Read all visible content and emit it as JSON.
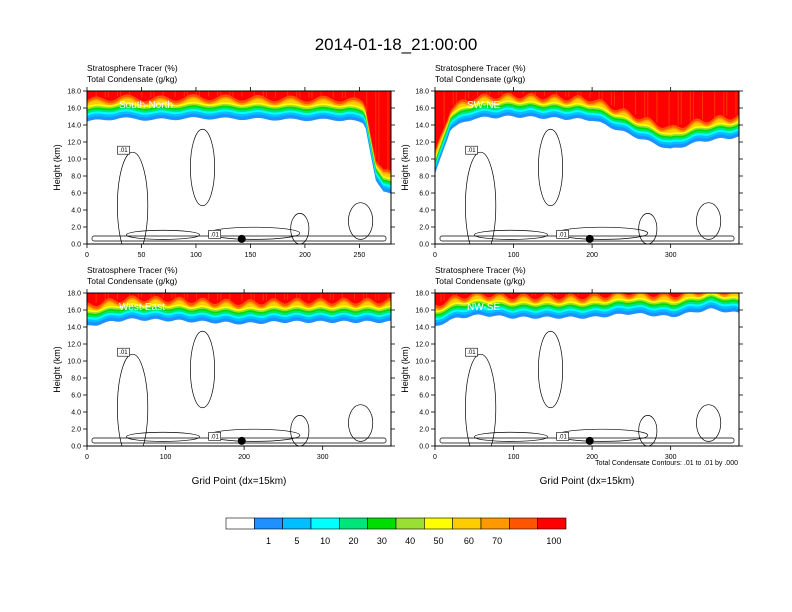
{
  "page": {
    "title": "2014-01-18_21:00:00",
    "note": "Total Condensate Contours: .01 to .01 by .000",
    "xaxis_title": "Grid Point (dx=15km)"
  },
  "colors": {
    "levels": [
      {
        "label": "",
        "hex": "#ffffff"
      },
      {
        "label": "1",
        "hex": "#1e90ff"
      },
      {
        "label": "5",
        "hex": "#00bfff"
      },
      {
        "label": "10",
        "hex": "#00ffff"
      },
      {
        "label": "20",
        "hex": "#00e57a"
      },
      {
        "label": "30",
        "hex": "#00dd00"
      },
      {
        "label": "40",
        "hex": "#99e033"
      },
      {
        "label": "50",
        "hex": "#ffff00"
      },
      {
        "label": "60",
        "hex": "#ffcc00"
      },
      {
        "label": "70",
        "hex": "#ff9900"
      },
      {
        "label": "",
        "hex": "#ff5500"
      },
      {
        "label": "100",
        "hex": "#ff0000"
      }
    ]
  },
  "chart_data": [
    {
      "type": "heatmap",
      "section": "South-North",
      "subtitle_1": "Stratosphere Tracer   (%)",
      "subtitle_2": "Total Condensate   (g/kg)",
      "ylabel": "Height (km)",
      "xlabel": "",
      "xlim": [
        0,
        279
      ],
      "ylim": [
        0,
        18
      ],
      "xticks": [
        0,
        50,
        100,
        150,
        200,
        250
      ],
      "yticks": [
        0,
        2,
        4,
        6,
        8,
        10,
        12,
        14,
        16,
        18
      ],
      "ytick_labels": [
        "0.0",
        "2.0",
        "4.0",
        "6.0",
        "8.0",
        "10.0",
        "12.0",
        "14.0",
        "16.0",
        "18.0"
      ],
      "contour_label": ".01",
      "marker_x": 142,
      "tracer_boundary": {
        "x": [
          0,
          30,
          60,
          100,
          150,
          200,
          240,
          255,
          265,
          272,
          279
        ],
        "y": [
          14.8,
          15.2,
          15.0,
          15.2,
          15.1,
          15.0,
          15.0,
          14.5,
          8,
          6.5,
          6.2
        ]
      }
    },
    {
      "type": "heatmap",
      "section": "SW-NE",
      "subtitle_1": "Stratosphere Tracer   (%)",
      "subtitle_2": "Total Condensate   (g/kg)",
      "ylabel": "Height (km)",
      "xlabel": "",
      "xlim": [
        0,
        387
      ],
      "ylim": [
        0,
        18
      ],
      "xticks": [
        0,
        100,
        200,
        300
      ],
      "yticks": [
        0,
        2,
        4,
        6,
        8,
        10,
        12,
        14,
        16,
        18
      ],
      "ytick_labels": [
        "0.0",
        "2.0",
        "4.0",
        "6.0",
        "8.0",
        "10.0",
        "12.0",
        "14.0",
        "16.0",
        "18.0"
      ],
      "contour_label": ".01",
      "marker_x": 197,
      "tracer_boundary": {
        "x": [
          0,
          20,
          50,
          100,
          150,
          200,
          250,
          300,
          340,
          387
        ],
        "y": [
          8.5,
          14.0,
          15.2,
          15.4,
          15.2,
          15.0,
          13.2,
          11.5,
          12.5,
          13.0
        ]
      }
    },
    {
      "type": "heatmap",
      "section": "West-East",
      "subtitle_1": "Stratosphere Tracer   (%)",
      "subtitle_2": "Total Condensate   (g/kg)",
      "ylabel": "Height (km)",
      "xlabel": "Grid Point (dx=15km)",
      "xlim": [
        0,
        387
      ],
      "ylim": [
        0,
        18
      ],
      "xticks": [
        0,
        100,
        200,
        300
      ],
      "yticks": [
        0,
        2,
        4,
        6,
        8,
        10,
        12,
        14,
        16,
        18
      ],
      "ytick_labels": [
        "0.0",
        "2.0",
        "4.0",
        "6.0",
        "8.0",
        "10.0",
        "12.0",
        "14.0",
        "16.0",
        "18.0"
      ],
      "contour_label": ".01",
      "marker_x": 197,
      "tracer_boundary": {
        "x": [
          0,
          50,
          100,
          150,
          200,
          250,
          300,
          387
        ],
        "y": [
          14.5,
          15.3,
          15.2,
          15.0,
          14.8,
          15.0,
          15.0,
          15.0
        ]
      }
    },
    {
      "type": "heatmap",
      "section": "NW-SE",
      "subtitle_1": "Stratosphere Tracer   (%)",
      "subtitle_2": "Total Condensate   (g/kg)",
      "ylabel": "Height (km)",
      "xlabel": "Grid Point (dx=15km)",
      "xlim": [
        0,
        387
      ],
      "ylim": [
        0,
        18
      ],
      "xticks": [
        0,
        100,
        200,
        300
      ],
      "yticks": [
        0,
        2,
        4,
        6,
        8,
        10,
        12,
        14,
        16,
        18
      ],
      "ytick_labels": [
        "0.0",
        "2.0",
        "4.0",
        "6.0",
        "8.0",
        "10.0",
        "12.0",
        "14.0",
        "16.0",
        "18.0"
      ],
      "contour_label": ".01",
      "marker_x": 197,
      "tracer_boundary": {
        "x": [
          0,
          30,
          60,
          100,
          150,
          200,
          250,
          300,
          350,
          387
        ],
        "y": [
          14.5,
          15.5,
          15.8,
          15.5,
          15.5,
          15.5,
          16.0,
          15.6,
          16.5,
          16.0
        ]
      }
    }
  ]
}
